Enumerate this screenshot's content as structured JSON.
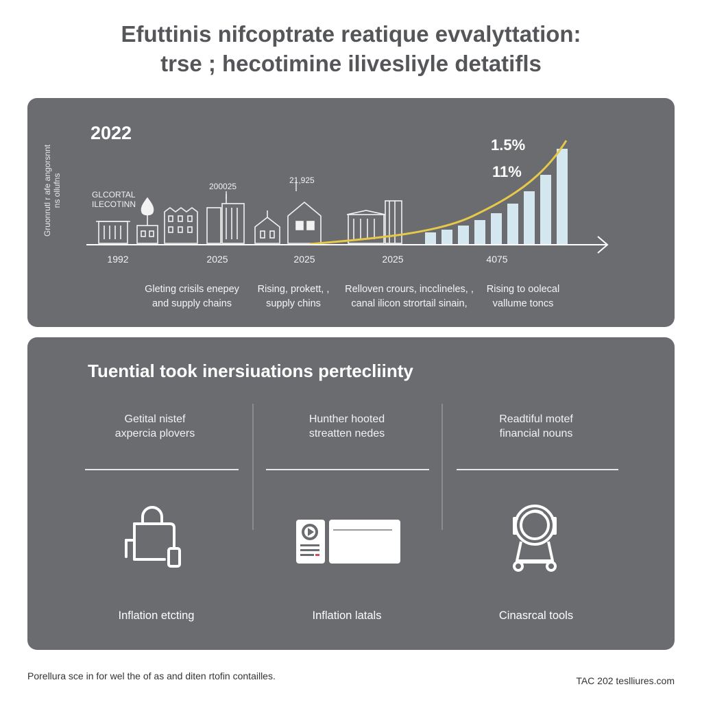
{
  "title": {
    "line1": "Efuttinis nifcoptrate reatique evvalyttation:",
    "line2": "trse ; hecotimine ilivesliyle detatifls"
  },
  "timeline": {
    "year_heading": "2022",
    "vertical_label": "Gruonrutl r afe angorsnnt ns ollufns",
    "tags": {
      "left_line1": "GLCORTAL",
      "left_line2": "ILECOTINN",
      "t2": "200025",
      "t3": "21,925"
    },
    "pct_top": "1.5%",
    "pct_bottom": "11%",
    "axis_years": [
      "1992",
      "2025",
      "2025",
      "2025",
      "4075"
    ],
    "descriptions": [
      {
        "line1": "Gleting crisils enepey",
        "line2": "and supply chains"
      },
      {
        "line1": "Rising, prokett, ,",
        "line2": "supply chins"
      },
      {
        "line1": "Relloven crours, incclineles, ,",
        "line2": "canal ilicon strortail sinain,"
      },
      {
        "line1": "Rising to oolecal",
        "line2": "vallume toncs"
      }
    ],
    "colors": {
      "accent_curve": "#e6c84a",
      "bars": "#d4e6ee",
      "line": "#ffffff"
    }
  },
  "insights": {
    "heading": "Tuential took inersiuations pertecliinty",
    "columns": [
      {
        "title_line1": "Getital nistef",
        "title_line2": "axpercia plovers",
        "icon": "shopping-bag-icon",
        "caption": "Inflation etcting"
      },
      {
        "title_line1": "Hunther hooted",
        "title_line2": "streatten nedes",
        "icon": "media-card-icon",
        "caption": "Inflation latals"
      },
      {
        "title_line1": "Readtiful motef",
        "title_line2": "financial nouns",
        "icon": "lens-cart-icon",
        "caption": "Cinasrcal tools"
      }
    ]
  },
  "footer": {
    "left": "Porellura sce in for wel the of as and diten rtofin contailles.",
    "right": "TAC 202 teslliures.com"
  }
}
